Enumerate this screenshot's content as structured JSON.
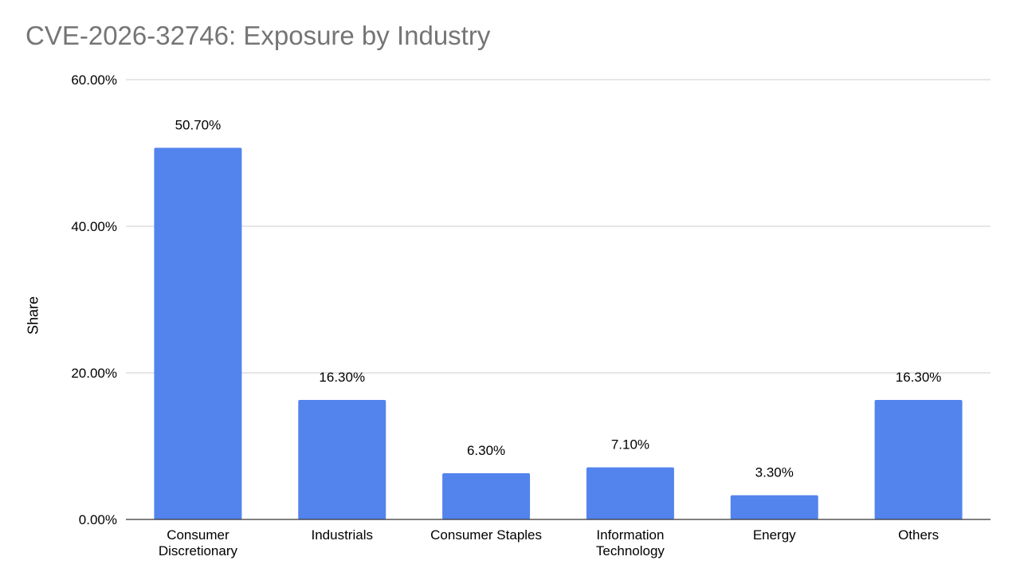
{
  "chart_data": {
    "type": "bar",
    "title": "CVE-2026-32746: Exposure by Industry",
    "xlabel": "",
    "ylabel": "Share",
    "categories": [
      [
        "Consumer",
        "Discretionary"
      ],
      [
        "Industrials"
      ],
      [
        "Consumer Staples"
      ],
      [
        "Information",
        "Technology"
      ],
      [
        "Energy"
      ],
      [
        "Others"
      ]
    ],
    "values": [
      50.7,
      16.3,
      6.3,
      7.1,
      3.3,
      16.3
    ],
    "data_labels": [
      "50.70%",
      "16.30%",
      "6.30%",
      "7.10%",
      "3.30%",
      "16.30%"
    ],
    "ylim": [
      0,
      60
    ],
    "yticks": [
      0,
      20,
      40,
      60
    ],
    "ytick_labels": [
      "0.00%",
      "20.00%",
      "40.00%",
      "60.00%"
    ],
    "grid": true,
    "legend": "none",
    "colors": {
      "bar": "#5384ED",
      "grid": "#CCCCCC",
      "axis": "#333333",
      "title": "#757575",
      "text": "#000000"
    }
  }
}
